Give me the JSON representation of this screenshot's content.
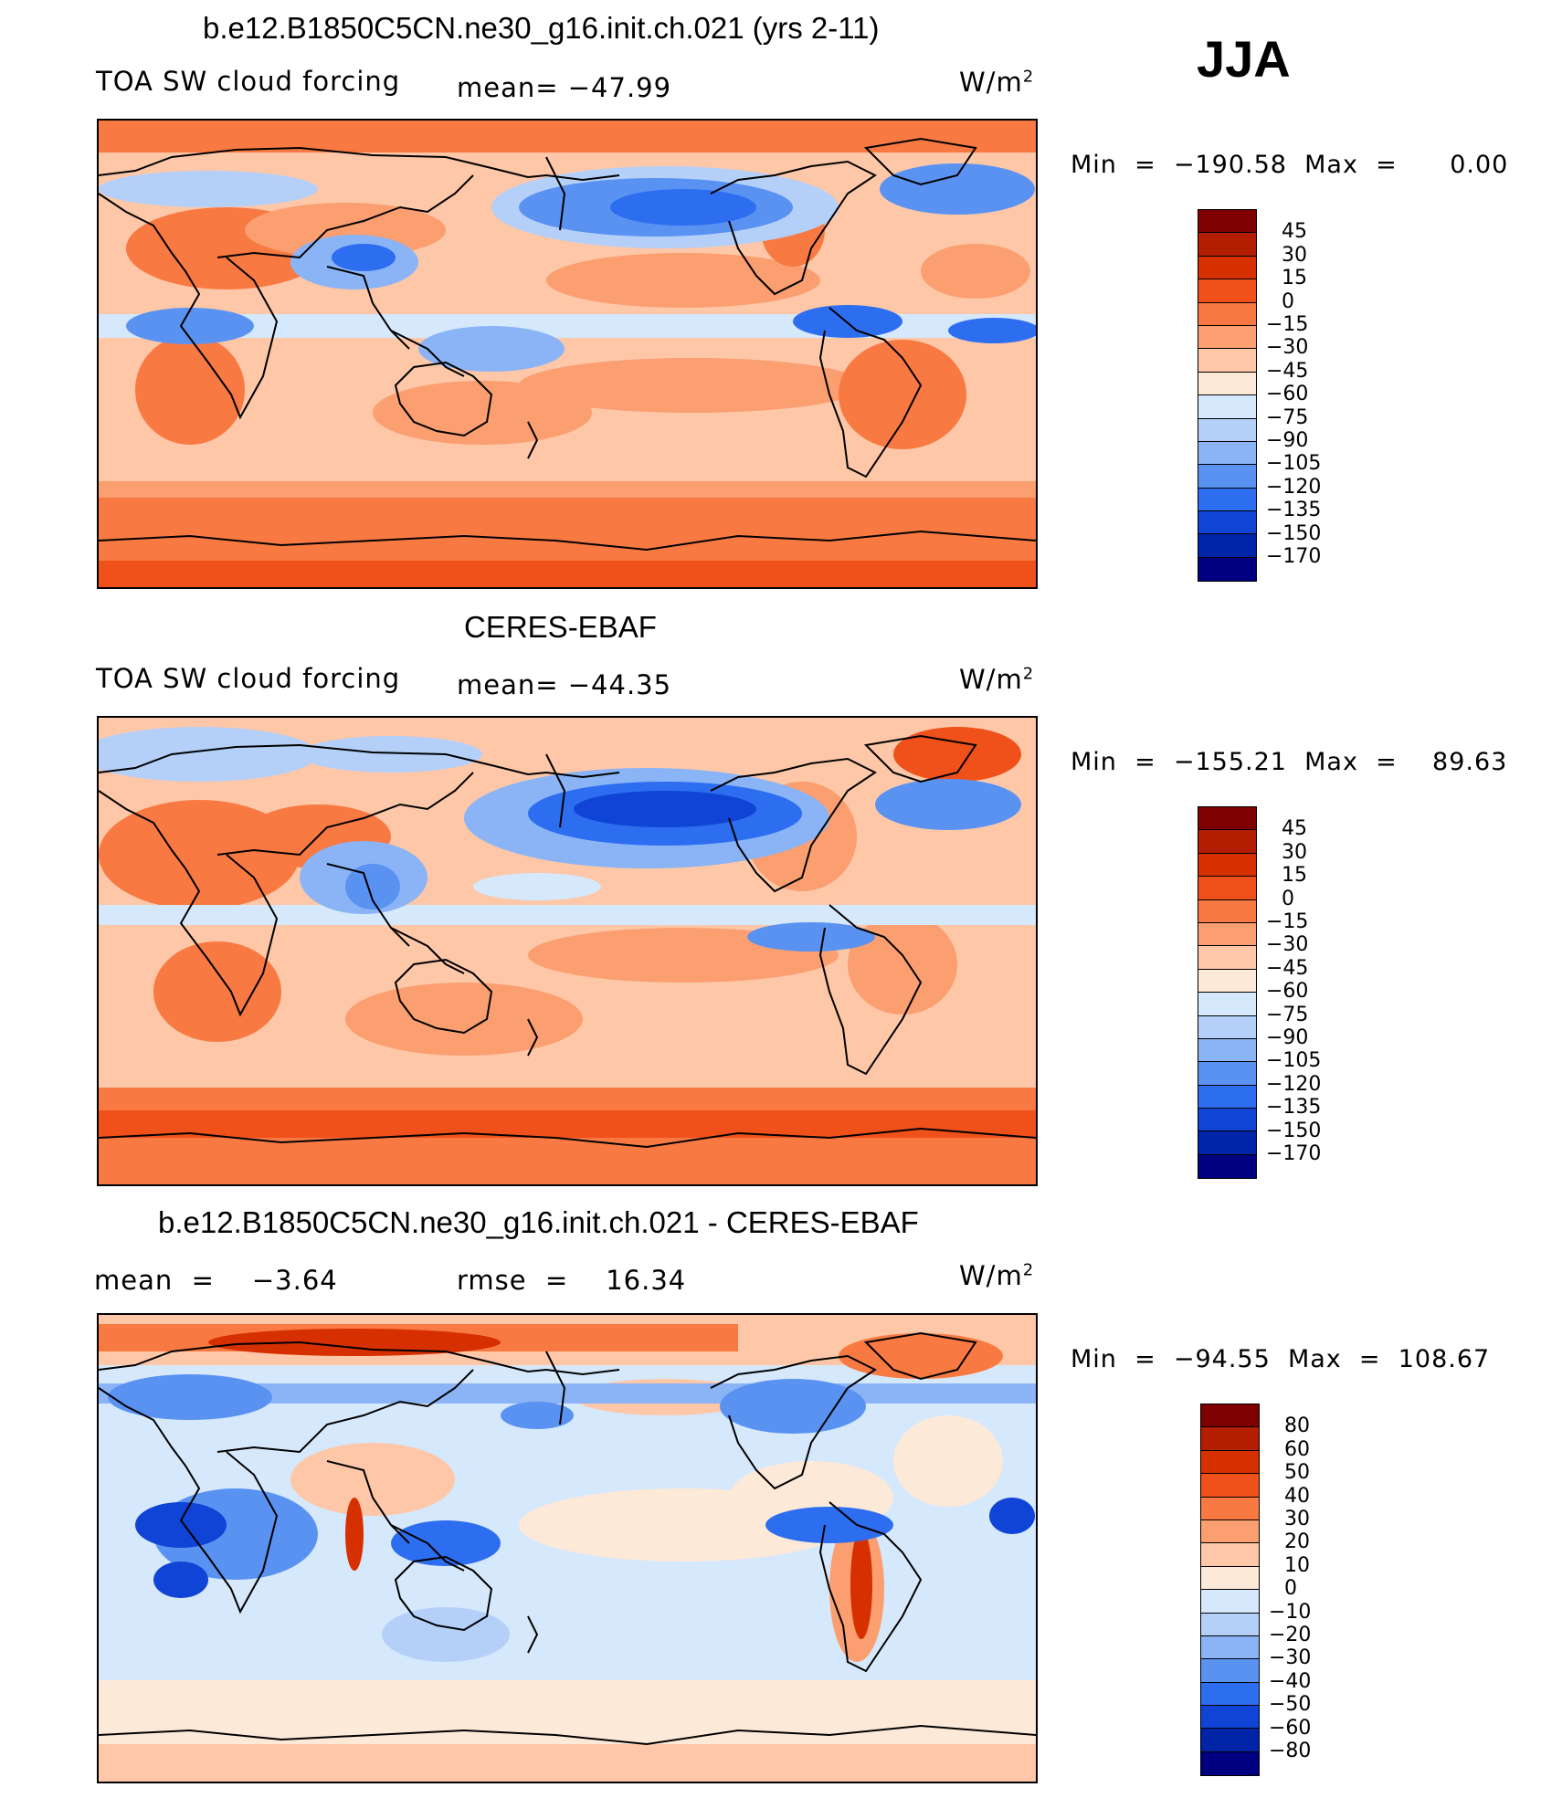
{
  "season": "JJA",
  "units": "W/m",
  "units_sup": "2",
  "panels": [
    {
      "title": "b.e12.B1850C5CN.ne30_g16.init.ch.021 (yrs 2-11)",
      "left_label": "TOA SW cloud forcing",
      "mid_label": "mean= −47.99",
      "min_label": "Min  =  −190.58  Max  =      0.00",
      "colorbar": {
        "labels": [
          "45",
          "30",
          "15",
          "0",
          "−15",
          "−30",
          "−45",
          "−60",
          "−75",
          "−90",
          "−105",
          "−120",
          "−135",
          "−150",
          "−170"
        ],
        "colors": [
          "#7f0000",
          "#b31d00",
          "#d73000",
          "#f0501a",
          "#f87942",
          "#fb9e70",
          "#fdc7a8",
          "#fde9d8",
          "#d6e8fb",
          "#b4d0f9",
          "#8ab4f6",
          "#5a92f2",
          "#2d6ef0",
          "#0f44d6",
          "#0024a8",
          "#000080"
        ]
      },
      "chart_data": {
        "type": "heatmap",
        "variable": "TOA SW cloud forcing",
        "units": "W/m2",
        "mean": -47.99,
        "min": -190.58,
        "max": 0.0,
        "levels": [
          45,
          30,
          15,
          0,
          -15,
          -30,
          -45,
          -60,
          -75,
          -90,
          -105,
          -120,
          -135,
          -150,
          -170
        ]
      }
    },
    {
      "title": "CERES-EBAF",
      "left_label": "TOA SW cloud forcing",
      "mid_label": "mean= −44.35",
      "min_label": "Min  =  −155.21  Max  =    89.63",
      "colorbar": {
        "labels": [
          "45",
          "30",
          "15",
          "0",
          "−15",
          "−30",
          "−45",
          "−60",
          "−75",
          "−90",
          "−105",
          "−120",
          "−135",
          "−150",
          "−170"
        ],
        "colors": [
          "#7f0000",
          "#b31d00",
          "#d73000",
          "#f0501a",
          "#f87942",
          "#fb9e70",
          "#fdc7a8",
          "#fde9d8",
          "#d6e8fb",
          "#b4d0f9",
          "#8ab4f6",
          "#5a92f2",
          "#2d6ef0",
          "#0f44d6",
          "#0024a8",
          "#000080"
        ]
      },
      "chart_data": {
        "type": "heatmap",
        "variable": "TOA SW cloud forcing",
        "units": "W/m2",
        "mean": -44.35,
        "min": -155.21,
        "max": 89.63,
        "levels": [
          45,
          30,
          15,
          0,
          -15,
          -30,
          -45,
          -60,
          -75,
          -90,
          -105,
          -120,
          -135,
          -150,
          -170
        ]
      }
    },
    {
      "title": "b.e12.B1850C5CN.ne30_g16.init.ch.021 - CERES-EBAF",
      "left_label": "mean  =    −3.64",
      "mid_label": "rmse  =    16.34",
      "min_label": "Min  =  −94.55  Max  =  108.67",
      "colorbar": {
        "labels": [
          "80",
          "60",
          "50",
          "40",
          "30",
          "20",
          "10",
          "0",
          "−10",
          "−20",
          "−30",
          "−40",
          "−50",
          "−60",
          "−80"
        ],
        "colors": [
          "#7f0000",
          "#b31d00",
          "#d73000",
          "#f0501a",
          "#f87942",
          "#fb9e70",
          "#fdc7a8",
          "#fde9d8",
          "#d6e8fb",
          "#b4d0f9",
          "#8ab4f6",
          "#5a92f2",
          "#2d6ef0",
          "#0f44d6",
          "#0024a8",
          "#000080"
        ]
      },
      "chart_data": {
        "type": "heatmap",
        "variable": "difference",
        "units": "W/m2",
        "mean": -3.64,
        "rmse": 16.34,
        "min": -94.55,
        "max": 108.67,
        "levels": [
          80,
          60,
          50,
          40,
          30,
          20,
          10,
          0,
          -10,
          -20,
          -30,
          -40,
          -50,
          -60,
          -80
        ]
      }
    }
  ]
}
